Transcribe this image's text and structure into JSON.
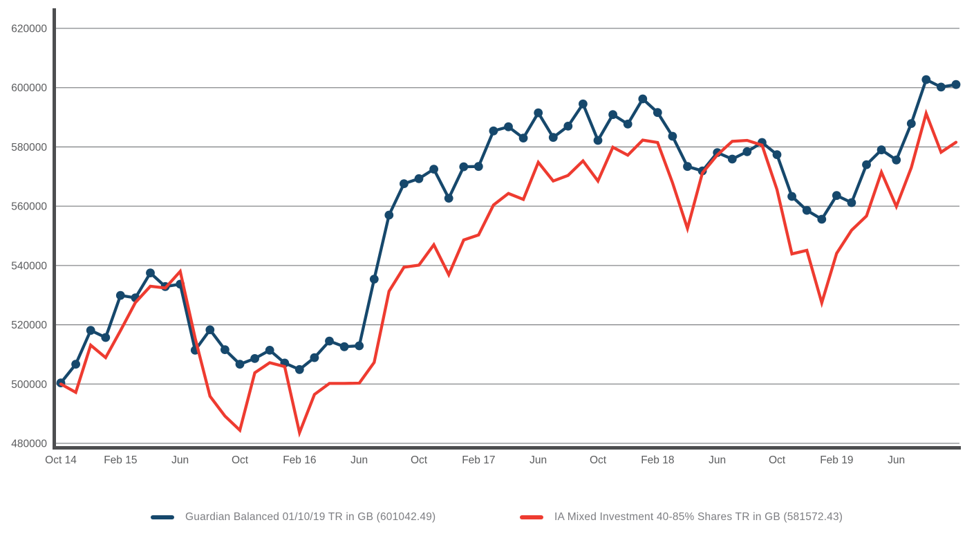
{
  "chart_data": {
    "type": "line",
    "title": "",
    "xlabel": "",
    "ylabel": "",
    "ylim": [
      480000,
      620000
    ],
    "grid": "horizontal",
    "y_tick_labels": [
      "620000",
      "600000",
      "580000",
      "560000",
      "540000",
      "520000",
      "500000",
      "480000"
    ],
    "y_tick_values": [
      620000,
      600000,
      580000,
      560000,
      540000,
      520000,
      500000,
      480000
    ],
    "x_tick_labels": [
      "Oct 14",
      "Feb 15",
      "Jun",
      "Oct",
      "Feb 16",
      "Jun",
      "Oct",
      "Feb 17",
      "Jun",
      "Oct",
      "Feb 18",
      "Jun",
      "Oct",
      "Feb 19",
      "Jun"
    ],
    "x_tick_every_months": 4,
    "x_months": [
      "Oct 14",
      "Nov 14",
      "Dec 14",
      "Jan 15",
      "Feb 15",
      "Mar 15",
      "Apr 15",
      "May 15",
      "Jun 15",
      "Jul 15",
      "Aug 15",
      "Sep 15",
      "Oct 15",
      "Nov 15",
      "Dec 15",
      "Jan 16",
      "Feb 16",
      "Mar 16",
      "Apr 16",
      "May 16",
      "Jun 16",
      "Jul 16",
      "Aug 16",
      "Sep 16",
      "Oct 16",
      "Nov 16",
      "Dec 16",
      "Jan 17",
      "Feb 17",
      "Mar 17",
      "Apr 17",
      "May 17",
      "Jun 17",
      "Jul 17",
      "Aug 17",
      "Sep 17",
      "Oct 17",
      "Nov 17",
      "Dec 17",
      "Jan 18",
      "Feb 18",
      "Mar 18",
      "Apr 18",
      "May 18",
      "Jun 18",
      "Jul 18",
      "Aug 18",
      "Sep 18",
      "Oct 18",
      "Nov 18",
      "Dec 18",
      "Jan 19",
      "Feb 19",
      "Mar 19",
      "Apr 19",
      "May 19",
      "Jun 19",
      "Jul 19",
      "Aug 19",
      "Sep 19",
      "Oct 19"
    ],
    "legend_position": "bottom",
    "series": [
      {
        "name": "Guardian Balanced 01/10/19 TR in GB (601042.49)",
        "final_value": 601042.49,
        "color": "#16486C",
        "markers": true,
        "values": [
          500400,
          506700,
          518100,
          515700,
          529900,
          529100,
          537500,
          532900,
          533700,
          511400,
          518300,
          511600,
          506700,
          508600,
          511400,
          507100,
          504900,
          508900,
          514500,
          512600,
          512900,
          535400,
          557000,
          567600,
          569300,
          572500,
          562700,
          573300,
          573400,
          585400,
          586800,
          583000,
          591500,
          583200,
          587000,
          594500,
          582200,
          590900,
          587700,
          596200,
          591600,
          583600,
          573400,
          571900,
          578100,
          575900,
          578400,
          581500,
          577400,
          563300,
          558600,
          555600,
          563600,
          561200,
          574000,
          579000,
          575600,
          587900,
          602700,
          600200,
          601042.49
        ]
      },
      {
        "name": "IA Mixed Investment 40-85% Shares TR in GB (581572.43)",
        "final_value": 581572.43,
        "color": "#EE3B30",
        "markers": false,
        "values": [
          500000,
          497200,
          513100,
          508900,
          518000,
          527500,
          533000,
          532400,
          538000,
          515500,
          495900,
          489200,
          484400,
          503800,
          507200,
          505900,
          483600,
          496500,
          500200,
          500200,
          500300,
          507300,
          531300,
          539400,
          540100,
          547000,
          536900,
          548600,
          550300,
          560400,
          564300,
          562300,
          574800,
          568500,
          570400,
          575300,
          568500,
          579900,
          577200,
          582300,
          581500,
          567900,
          552500,
          571200,
          577300,
          581900,
          582200,
          580600,
          565600,
          543900,
          545100,
          527400,
          544100,
          551900,
          556700,
          571500,
          559900,
          573000,
          591300,
          578200,
          581572.43
        ]
      }
    ],
    "colors": {
      "axis_spine": "#4D4E50",
      "gridline": "#85878A",
      "tick_text": "#5B5C5E",
      "legend_text": "#7D7E82",
      "background": "#FFFFFF"
    }
  },
  "legend": {
    "guardian_label": "Guardian Balanced 01/10/19 TR in GB (601042.49)",
    "ia_label": "IA Mixed Investment 40-85% Shares TR in GB (581572.43)"
  }
}
